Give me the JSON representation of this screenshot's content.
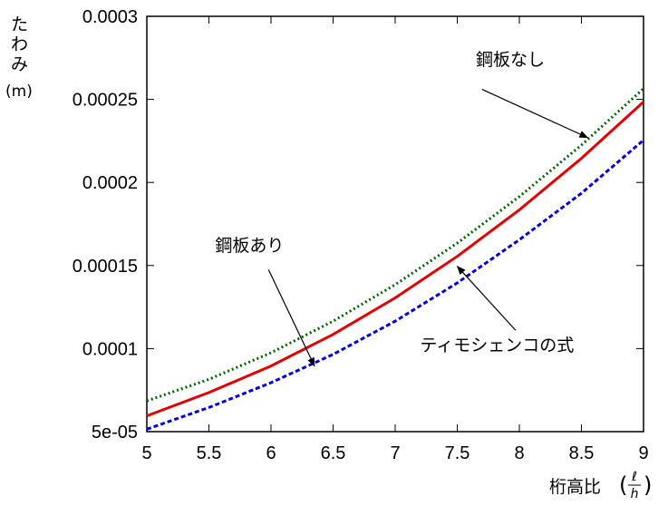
{
  "chart_data": {
    "type": "line",
    "xlabel": "桁高比",
    "xlabel_fraction": {
      "num": "ℓ",
      "den": "h"
    },
    "ylabel_lines": [
      "た",
      "わ",
      "み"
    ],
    "ylabel_unit": "(m)",
    "xlim": [
      5,
      9
    ],
    "ylim": [
      5e-05,
      0.0003
    ],
    "x_ticks": [
      5,
      5.5,
      6,
      6.5,
      7,
      7.5,
      8,
      8.5,
      9
    ],
    "x_tick_labels": [
      "5",
      "5.5",
      "6",
      "6.5",
      "7",
      "7.5",
      "8",
      "8.5",
      "9"
    ],
    "y_ticks": [
      5e-05,
      0.0001,
      0.00015,
      0.0002,
      0.00025,
      0.0003
    ],
    "y_tick_labels": [
      "5e-05",
      "0.0001",
      "0.00015",
      "0.0002",
      "0.00025",
      "0.0003"
    ],
    "grid": false,
    "x": [
      5,
      5.5,
      6,
      6.5,
      7,
      7.5,
      8,
      8.5,
      9
    ],
    "series": [
      {
        "name": "鋼板なし",
        "color": "#006400",
        "dash": "dotted",
        "values": [
          6.85e-05,
          8.15e-05,
          9.75e-05,
          0.0001165,
          0.0001385,
          0.0001635,
          0.0001915,
          0.0002225,
          0.0002565
        ]
      },
      {
        "name": "鋼板あり",
        "color": "#e00000",
        "dash": "solid",
        "values": [
          5.95e-05,
          7.35e-05,
          8.95e-05,
          0.0001085,
          0.0001305,
          0.0001555,
          0.0001835,
          0.0002145,
          0.0002485
        ]
      },
      {
        "name": "ティモシェンコの式",
        "color": "#0000e0",
        "dash": "dashed",
        "values": [
          5.15e-05,
          6.45e-05,
          7.95e-05,
          9.65e-05,
          0.0001165,
          0.0001395,
          0.0001655,
          0.0001935,
          0.0002255
        ]
      }
    ],
    "annotations": [
      {
        "text": "鋼板なし",
        "series": 0,
        "label_at": [
          7.65,
          0.0002705
        ],
        "arrow_from": [
          7.7,
          0.000256
        ],
        "arrow_to": [
          8.55,
          0.000227
        ]
      },
      {
        "text": "鋼板あり",
        "series": 1,
        "label_at": [
          5.55,
          0.0001585
        ],
        "arrow_from": [
          5.98,
          0.0001475
        ],
        "arrow_to": [
          6.35,
          8.95e-05
        ]
      },
      {
        "text": "ティモシェンコの式",
        "series": 2,
        "label_at": [
          7.2,
          9.85e-05
        ],
        "arrow_from": [
          7.97,
          0.000111
        ],
        "arrow_to": [
          7.5,
          0.0001495
        ]
      }
    ]
  }
}
